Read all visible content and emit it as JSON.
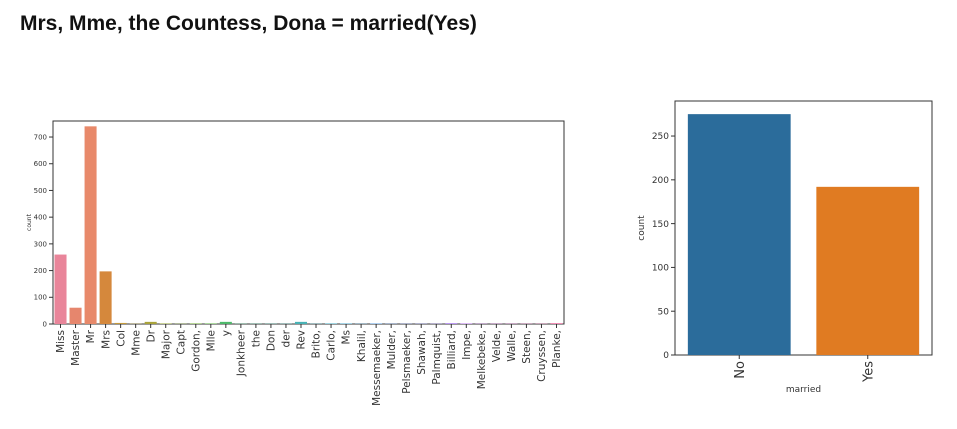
{
  "slide": {
    "title": "Mrs, Mme, the Countess, Dona = married(Yes)"
  },
  "chart_data": [
    {
      "type": "bar",
      "title": "",
      "xlabel": "",
      "ylabel": "count",
      "ylim": [
        0,
        760
      ],
      "yticks": [
        0,
        100,
        200,
        300,
        400,
        500,
        600,
        700
      ],
      "grid": false,
      "categories": [
        "Miss",
        "Master",
        "Mr",
        "Mrs",
        "Col",
        "Mme",
        "Dr",
        "Major",
        "Capt",
        "Gordon,",
        "Mlle",
        "y",
        "Jonkheer",
        "the",
        "Don",
        "der",
        "Rev",
        "Brito,",
        "Carlo,",
        "Ms",
        "Khalil,",
        "Messemaeker,",
        "Mulder,",
        "Pelsmaeker,",
        "Shawah,",
        "Palmquist,",
        "Billiard,",
        "Impe,",
        "Melkebeke,",
        "Velde,",
        "Walle,",
        "Steen,",
        "Cruyssen,",
        "Planke,"
      ],
      "values": [
        260,
        61,
        740,
        197,
        4,
        1,
        8,
        2,
        1,
        2,
        2,
        8,
        1,
        1,
        1,
        1,
        8,
        1,
        2,
        2,
        1,
        2,
        1,
        1,
        1,
        1,
        3,
        2,
        1,
        1,
        1,
        1,
        1,
        3
      ],
      "colors": [
        "#e9859a",
        "#e6866d",
        "#e8896a",
        "#d5883c",
        "#c49a3c",
        "#b59d3b",
        "#a9a33a",
        "#98a83a",
        "#87ac3b",
        "#76b03c",
        "#62b54a",
        "#4db86a",
        "#47b883",
        "#46b693",
        "#46b5a0",
        "#47b3ab",
        "#48b2b5",
        "#4bb0bd",
        "#4fafc6",
        "#54adcf",
        "#5ba9d9",
        "#64a4e2",
        "#6f9eea",
        "#7e97ef",
        "#8d90f1",
        "#9c88f1",
        "#ab80ef",
        "#ba7aeb",
        "#c874e4",
        "#d46fdb",
        "#de6bcf",
        "#e56bc0",
        "#e96db0",
        "#ec70a1"
      ]
    },
    {
      "type": "bar",
      "title": "",
      "xlabel": "married",
      "ylabel": "count",
      "ylim": [
        0,
        290
      ],
      "yticks": [
        0,
        50,
        100,
        150,
        200,
        250
      ],
      "grid": false,
      "categories": [
        "No",
        "Yes"
      ],
      "values": [
        275,
        192
      ],
      "colors": [
        "#2b6c9b",
        "#e07b22"
      ]
    }
  ]
}
